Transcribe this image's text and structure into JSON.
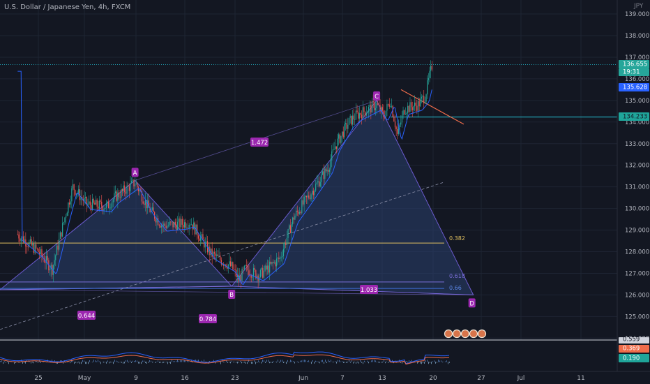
{
  "header": {
    "symbol_title": "U.S. Dollar / Japanese Yen, 4h, FXCM",
    "currency": "JPY"
  },
  "price_axis": {
    "ticks": [
      "139.000",
      "138.000",
      "137.000",
      "136.000",
      "135.000",
      "134.000",
      "133.000",
      "132.000",
      "131.000",
      "130.000",
      "129.000",
      "128.000",
      "127.000",
      "126.000",
      "125.000",
      "124.000"
    ]
  },
  "badges": {
    "last_price": "136.655",
    "countdown": "19:31",
    "price_2": "135.628",
    "price_3": "134.233",
    "osc_1": "0.559",
    "osc_2": "0.369",
    "osc_3": "0.190"
  },
  "time_axis": {
    "labels": [
      "25",
      "May",
      "9",
      "16",
      "23",
      "Jun",
      "7",
      "13",
      "20",
      "27",
      "Jul",
      "11"
    ]
  },
  "pattern": {
    "points": [
      "A",
      "B",
      "C",
      "D"
    ],
    "ratios": [
      "1.472",
      "0.644",
      "0.784",
      "1.033"
    ],
    "fib_levels": [
      "0.382",
      "0.618",
      "0.66"
    ]
  },
  "colors": {
    "background": "#131722",
    "grid": "#1e2433",
    "up_candle": "#26a69a",
    "down_candle": "#ef5350",
    "pattern_fill": "#2a3f6e",
    "pattern_label": "#9c27b0",
    "fib_382": "#e0c060",
    "fib_618": "#7b6fd8",
    "price_line": "#26c6da",
    "blue_badge": "#2962ff"
  },
  "chart_data": {
    "type": "candlestick",
    "ylabel": "JPY",
    "ylim": [
      123.3,
      139.2
    ],
    "x": [
      "Apr 25",
      "May 1",
      "May 9",
      "May 16",
      "May 23",
      "Jun 1",
      "Jun 7",
      "Jun 13",
      "Jun 20",
      "Jun 27",
      "Jul 1",
      "Jul 11"
    ],
    "close_path": [
      [
        "Apr 22",
        128.8
      ],
      [
        "Apr 25",
        128.0
      ],
      [
        "Apr 27",
        127.2
      ],
      [
        "Apr 29",
        129.8
      ],
      [
        "Apr 30",
        131.0
      ],
      [
        "May 2",
        130.2
      ],
      [
        "May 5",
        130.1
      ],
      [
        "May 6",
        130.5
      ],
      [
        "May 9",
        131.2
      ],
      [
        "May 11",
        130.0
      ],
      [
        "May 13",
        129.2
      ],
      [
        "May 16",
        129.3
      ],
      [
        "May 17",
        129.4
      ],
      [
        "May 19",
        128.4
      ],
      [
        "May 20",
        127.9
      ],
      [
        "May 23",
        127.3
      ],
      [
        "May 24",
        126.7
      ],
      [
        "May 25",
        127.2
      ],
      [
        "May 27",
        126.9
      ],
      [
        "May 30",
        127.7
      ],
      [
        "Jun 1",
        129.6
      ],
      [
        "Jun 3",
        130.5
      ],
      [
        "Jun 6",
        131.9
      ],
      [
        "Jun 7",
        132.9
      ],
      [
        "Jun 9",
        134.0
      ],
      [
        "Jun 10",
        134.3
      ],
      [
        "Jun 13",
        134.8
      ],
      [
        "Jun 14",
        134.3
      ],
      [
        "Jun 15",
        135.0
      ],
      [
        "Jun 16",
        133.4
      ],
      [
        "Jun 17",
        134.6
      ],
      [
        "Jun 19",
        134.8
      ],
      [
        "Jun 20",
        135.2
      ],
      [
        "Jun 21",
        136.6
      ]
    ],
    "harmonic_pattern": {
      "A": [
        "May 9",
        131.3
      ],
      "B": [
        "May 23",
        126.4
      ],
      "C": [
        "Jun 13",
        135.0
      ],
      "D": [
        "Jun 27",
        126.0
      ]
    },
    "horizontal_levels": [
      128.4,
      126.6,
      126.3,
      134.233
    ],
    "oscillator": {
      "values": [
        0.559,
        0.369,
        0.19
      ]
    }
  }
}
